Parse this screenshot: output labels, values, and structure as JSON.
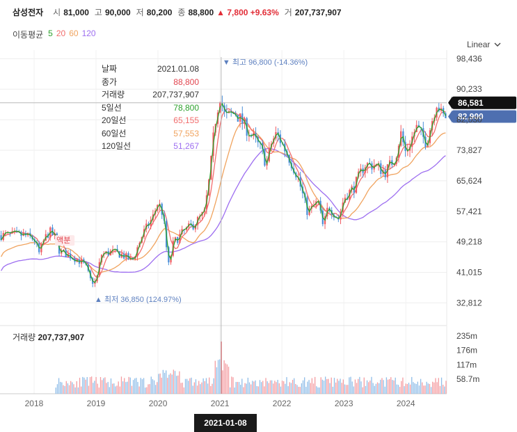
{
  "header": {
    "stock_name": "삼성전자",
    "open_label": "시",
    "open": "81,000",
    "high_label": "고",
    "high": "90,000",
    "low_label": "저",
    "low": "80,200",
    "close_label": "종",
    "close": "88,800",
    "change": "▲ 7,800 +9.63%",
    "volume_label": "거",
    "volume": "207,737,907"
  },
  "moving_average": {
    "title": "이동평균",
    "periods": [
      {
        "label": "5",
        "color": "#2ca02c"
      },
      {
        "label": "20",
        "color": "#f26d6d"
      },
      {
        "label": "60",
        "color": "#f0a35e"
      },
      {
        "label": "120",
        "color": "#9d6ef0"
      }
    ]
  },
  "scale_selector": {
    "label": "Linear"
  },
  "tooltip": {
    "rows": [
      {
        "key": "날짜",
        "value": "2021.01.08",
        "color": "#333333"
      },
      {
        "key": "종가",
        "value": "88,800",
        "color": "#e2454f"
      },
      {
        "key": "거래량",
        "value": "207,737,907",
        "color": "#333333"
      },
      {
        "key": "5일선",
        "value": "78,800",
        "color": "#2ca02c"
      },
      {
        "key": "20일선",
        "value": "65,155",
        "color": "#f26d6d"
      },
      {
        "key": "60일선",
        "value": "57,553",
        "color": "#f0a35e"
      },
      {
        "key": "120일선",
        "value": "51,267",
        "color": "#9d6ef0"
      }
    ]
  },
  "annotations": {
    "high": "최고 96,800 (-14.36%)",
    "low": "최저 36,850 (124.97%)",
    "dividend": "액분"
  },
  "price_labels": {
    "crosshair": "86,581",
    "last": "82,900"
  },
  "volume_panel": {
    "title": "거래량",
    "value": "207,737,907"
  },
  "selected_date": "2021-01-08",
  "chart_data": {
    "type": "candlestick",
    "price_axis": {
      "ticks": [
        "98,436",
        "90,233",
        "82,030",
        "73,827",
        "65,624",
        "57,421",
        "49,218",
        "41,015",
        "32,812"
      ],
      "ylim": [
        28000,
        100000
      ]
    },
    "volume_axis": {
      "ticks": [
        "235m",
        "176m",
        "117m",
        "58.7m"
      ]
    },
    "x_ticks": [
      "2018",
      "2019",
      "2020",
      "2021",
      "2022",
      "2023",
      "2024"
    ],
    "close_points": [
      [
        "2017-11",
        51000
      ],
      [
        "2018-01",
        50000
      ],
      [
        "2018-02",
        46000
      ],
      [
        "2018-03",
        50000
      ],
      [
        "2018-04",
        52000
      ],
      [
        "2018-05",
        50500
      ],
      [
        "2018-06",
        46500
      ],
      [
        "2018-08",
        45500
      ],
      [
        "2018-10",
        44000
      ],
      [
        "2018-11",
        42500
      ],
      [
        "2018-12",
        38700
      ],
      [
        "2019-01",
        38250
      ],
      [
        "2019-02",
        45800
      ],
      [
        "2019-04",
        46500
      ],
      [
        "2019-06",
        45800
      ],
      [
        "2019-08",
        44000
      ],
      [
        "2019-10",
        51200
      ],
      [
        "2019-12",
        55800
      ],
      [
        "2020-01",
        60000
      ],
      [
        "2020-02",
        56500
      ],
      [
        "2020-03",
        42500
      ],
      [
        "2020-04",
        49000
      ],
      [
        "2020-06",
        52000
      ],
      [
        "2020-08",
        54000
      ],
      [
        "2020-10",
        57000
      ],
      [
        "2020-11",
        66700
      ],
      [
        "2020-12",
        81000
      ],
      [
        "2021-01",
        88800
      ],
      [
        "2021-02",
        82500
      ],
      [
        "2021-04",
        84000
      ],
      [
        "2021-06",
        80000
      ],
      [
        "2021-08",
        76000
      ],
      [
        "2021-09",
        74000
      ],
      [
        "2021-10",
        70000
      ],
      [
        "2021-11",
        76000
      ],
      [
        "2021-12",
        78300
      ],
      [
        "2022-02",
        73000
      ],
      [
        "2022-04",
        67000
      ],
      [
        "2022-06",
        57000
      ],
      [
        "2022-08",
        60000
      ],
      [
        "2022-09",
        53000
      ],
      [
        "2022-10",
        59000
      ],
      [
        "2022-12",
        55300
      ],
      [
        "2023-01",
        61000
      ],
      [
        "2023-03",
        64000
      ],
      [
        "2023-05",
        70000
      ],
      [
        "2023-07",
        69800
      ],
      [
        "2023-09",
        68000
      ],
      [
        "2023-11",
        72000
      ],
      [
        "2023-12",
        78500
      ],
      [
        "2024-01",
        73000
      ],
      [
        "2024-03",
        80000
      ],
      [
        "2024-05",
        76000
      ],
      [
        "2024-07",
        87000
      ],
      [
        "2024-08",
        82900
      ]
    ],
    "moving_averages": {
      "ma5": [
        [
          "2021-01",
          78800
        ]
      ],
      "ma20": [
        [
          "2021-01",
          65155
        ]
      ],
      "ma60": [
        [
          "2021-01",
          57553
        ]
      ],
      "ma120": [
        [
          "2021-01",
          51267
        ]
      ]
    },
    "annotated_points": {
      "high": [
        "2021-01",
        96800
      ],
      "low": [
        "2019-01",
        36850
      ]
    }
  }
}
